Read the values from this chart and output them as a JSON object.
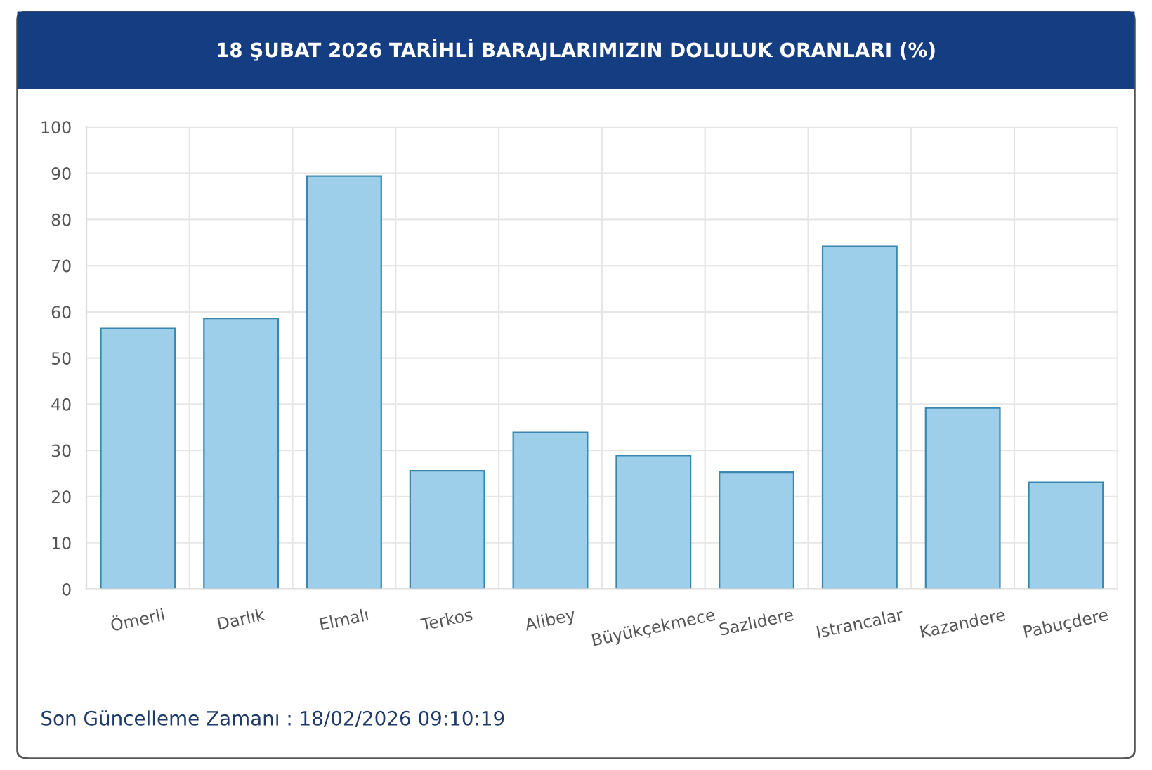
{
  "chart_data": {
    "type": "bar",
    "title": "18 ŞUBAT 2026 TARİHLİ BARAJLARIMIZIN DOLULUK ORANLARI (%)",
    "categories": [
      "Ömerli",
      "Darlık",
      "Elmalı",
      "Terkos",
      "Alibey",
      "Büyükçekmece",
      "Sazlıdere",
      "Istrancalar",
      "Kazandere",
      "Pabuçdere"
    ],
    "values": [
      56.4,
      58.6,
      89.4,
      25.6,
      33.9,
      28.9,
      25.3,
      74.2,
      39.2,
      23.1
    ],
    "color": "#9dcfeb",
    "ylim": [
      0,
      100
    ],
    "yticks": [
      0,
      10,
      20,
      30,
      40,
      50,
      60,
      70,
      80,
      90,
      100
    ],
    "grid": true,
    "annotations": [
      "Son Güncelleme Zamanı : 18/02/2026 09:10:19"
    ]
  }
}
